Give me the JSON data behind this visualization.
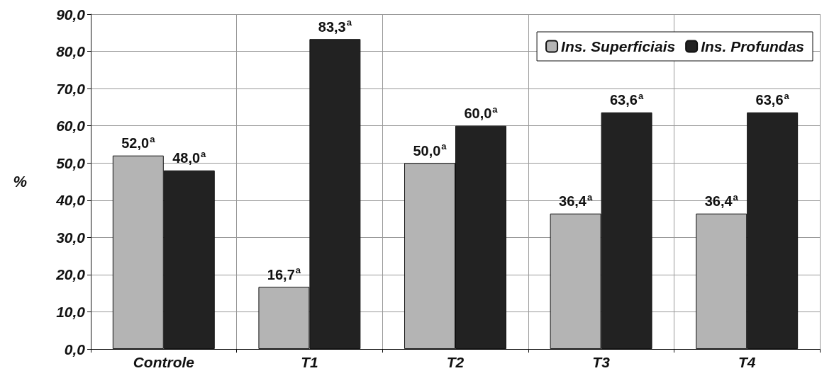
{
  "chart_data": {
    "type": "bar",
    "ylabel": "%",
    "categories": [
      "Controle",
      "T1",
      "T2",
      "T3",
      "T4"
    ],
    "series": [
      {
        "name": "Ins. Superficiais",
        "color": "#b4b4b4",
        "values": [
          52.0,
          16.7,
          50.0,
          36.4,
          36.4
        ],
        "value_labels": [
          "52,0$^{a}$",
          "16,7$^{a}$",
          "50,0$^{a}$",
          "36,4$^{a}$",
          "36,4$^{a}$"
        ]
      },
      {
        "name": "Ins. Profundas",
        "color": "#222222",
        "values": [
          48.0,
          83.3,
          60.0,
          63.6,
          63.6
        ],
        "value_labels": [
          "48,0$^{a}$",
          "83,3$^{a}$",
          "60,0$^{a}$",
          "63,6$^{a}$",
          "63,6$^{a}$"
        ]
      }
    ],
    "ylim": [
      0,
      90
    ],
    "yticks": [
      {
        "value": 0,
        "label": "0,0"
      },
      {
        "value": 10,
        "label": "10,0"
      },
      {
        "value": 20,
        "label": "20,0"
      },
      {
        "value": 30,
        "label": "30,0"
      },
      {
        "value": 40,
        "label": "40,0"
      },
      {
        "value": 50,
        "label": "50,0"
      },
      {
        "value": 60,
        "label": "60,0"
      },
      {
        "value": 70,
        "label": "70,0"
      },
      {
        "value": 80,
        "label": "80,0"
      },
      {
        "value": 90,
        "label": "90,0"
      }
    ],
    "grid": true,
    "legend": "top right"
  }
}
